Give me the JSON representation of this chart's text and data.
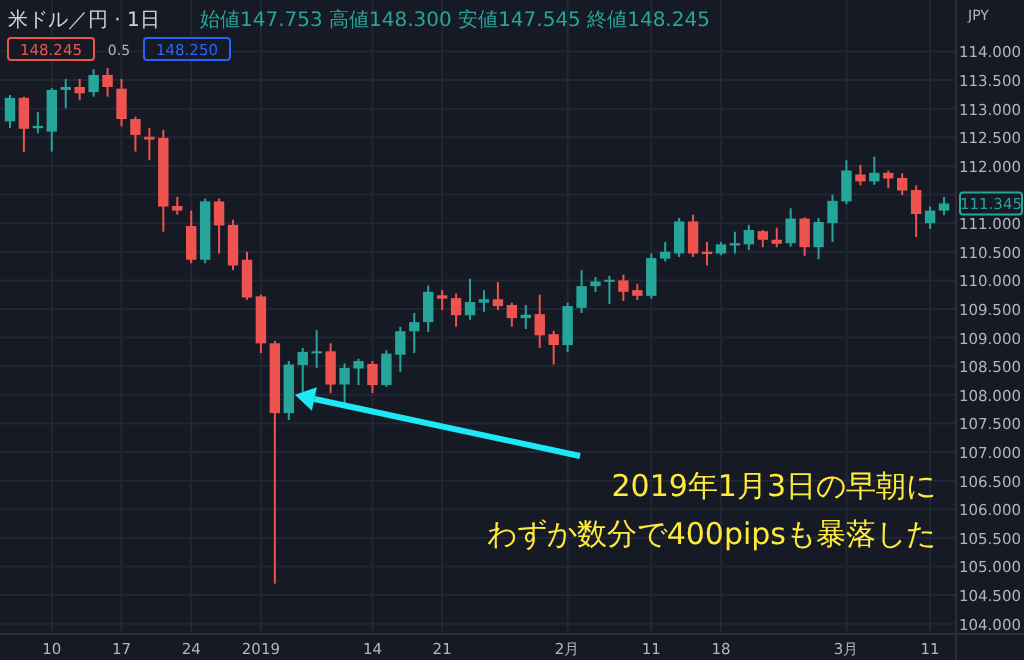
{
  "chart_data": {
    "type": "candlestick",
    "title": "米ドル／円 · 1日",
    "subtitle": "始値147.753 高値148.300 安値147.545 終値148.245",
    "ylabel": "JPY",
    "categories": [
      null,
      null,
      null,
      "10",
      null,
      null,
      null,
      null,
      "17",
      null,
      null,
      null,
      null,
      "24",
      null,
      null,
      null,
      null,
      "2019",
      null,
      null,
      null,
      null,
      null,
      null,
      null,
      "14",
      null,
      null,
      null,
      null,
      "21",
      null,
      null,
      null,
      null,
      null,
      null,
      null,
      null,
      "2月",
      null,
      null,
      null,
      null,
      null,
      "11",
      null,
      null,
      null,
      null,
      "18",
      null,
      null,
      null,
      null,
      null,
      null,
      null,
      null,
      "3月",
      null,
      null,
      null,
      null,
      null,
      "11",
      null
    ],
    "ohlc": [
      [
        112.78,
        113.24,
        112.66,
        113.19
      ],
      [
        113.19,
        113.21,
        112.24,
        112.65
      ],
      [
        112.66,
        112.94,
        112.57,
        112.7
      ],
      [
        112.6,
        113.36,
        112.25,
        113.33
      ],
      [
        113.33,
        113.52,
        113.01,
        113.38
      ],
      [
        113.38,
        113.52,
        113.15,
        113.27
      ],
      [
        113.29,
        113.69,
        113.21,
        113.59
      ],
      [
        113.59,
        113.71,
        113.21,
        113.38
      ],
      [
        113.35,
        113.52,
        112.69,
        112.82
      ],
      [
        112.82,
        112.86,
        112.25,
        112.54
      ],
      [
        112.51,
        112.66,
        112.1,
        112.46
      ],
      [
        112.49,
        112.63,
        110.85,
        111.29
      ],
      [
        111.3,
        111.46,
        111.15,
        111.22
      ],
      [
        110.95,
        111.22,
        110.3,
        110.36
      ],
      [
        110.36,
        111.43,
        110.3,
        111.38
      ],
      [
        111.38,
        111.43,
        110.47,
        110.96
      ],
      [
        110.97,
        111.06,
        110.18,
        110.26
      ],
      [
        110.36,
        110.5,
        109.66,
        109.7
      ],
      [
        109.72,
        109.75,
        108.73,
        108.9
      ],
      [
        108.9,
        108.94,
        104.7,
        107.68
      ],
      [
        107.68,
        108.59,
        107.56,
        108.53
      ],
      [
        108.52,
        108.82,
        108.05,
        108.75
      ],
      [
        108.73,
        109.13,
        108.47,
        108.76
      ],
      [
        108.76,
        108.9,
        108.03,
        108.18
      ],
      [
        108.18,
        108.55,
        107.82,
        108.47
      ],
      [
        108.46,
        108.63,
        108.17,
        108.59
      ],
      [
        108.54,
        108.59,
        108.03,
        108.17
      ],
      [
        108.17,
        108.78,
        108.14,
        108.72
      ],
      [
        108.7,
        109.19,
        108.4,
        109.11
      ],
      [
        109.11,
        109.43,
        108.73,
        109.27
      ],
      [
        109.27,
        109.91,
        109.1,
        109.8
      ],
      [
        109.74,
        109.83,
        109.48,
        109.68
      ],
      [
        109.69,
        109.77,
        109.19,
        109.39
      ],
      [
        109.39,
        110.03,
        109.31,
        109.62
      ],
      [
        109.61,
        109.83,
        109.45,
        109.67
      ],
      [
        109.67,
        109.97,
        109.48,
        109.55
      ],
      [
        109.57,
        109.61,
        109.19,
        109.34
      ],
      [
        109.34,
        109.57,
        109.15,
        109.4
      ],
      [
        109.41,
        109.75,
        108.82,
        109.04
      ],
      [
        109.06,
        109.12,
        108.53,
        108.87
      ],
      [
        108.87,
        109.61,
        108.75,
        109.55
      ],
      [
        109.52,
        110.18,
        109.43,
        109.9
      ],
      [
        109.9,
        110.06,
        109.8,
        109.98
      ],
      [
        109.98,
        110.08,
        109.59,
        110.01
      ],
      [
        110.0,
        110.1,
        109.64,
        109.8
      ],
      [
        109.83,
        109.94,
        109.66,
        109.73
      ],
      [
        109.73,
        110.47,
        109.68,
        110.39
      ],
      [
        110.38,
        110.67,
        110.33,
        110.5
      ],
      [
        110.47,
        111.09,
        110.41,
        111.03
      ],
      [
        111.03,
        111.15,
        110.41,
        110.47
      ],
      [
        110.5,
        110.67,
        110.26,
        110.46
      ],
      [
        110.47,
        110.67,
        110.44,
        110.63
      ],
      [
        110.61,
        110.85,
        110.47,
        110.65
      ],
      [
        110.63,
        110.97,
        110.53,
        110.88
      ],
      [
        110.86,
        110.88,
        110.58,
        110.71
      ],
      [
        110.71,
        110.92,
        110.58,
        110.64
      ],
      [
        110.65,
        111.26,
        110.59,
        111.08
      ],
      [
        111.08,
        111.1,
        110.43,
        110.58
      ],
      [
        110.58,
        111.09,
        110.37,
        111.02
      ],
      [
        111.0,
        111.5,
        110.67,
        111.39
      ],
      [
        111.38,
        112.1,
        111.33,
        111.92
      ],
      [
        111.85,
        112.02,
        111.66,
        111.73
      ],
      [
        111.73,
        112.16,
        111.67,
        111.88
      ],
      [
        111.88,
        111.92,
        111.61,
        111.78
      ],
      [
        111.79,
        111.87,
        111.49,
        111.57
      ],
      [
        111.58,
        111.66,
        110.76,
        111.16
      ],
      [
        111.0,
        111.29,
        110.9,
        111.22
      ],
      [
        111.22,
        111.46,
        111.14,
        111.345
      ]
    ],
    "colors": [
      "#26a69a",
      "#ef5350",
      "#26a69a",
      "#26a69a",
      "#26a69a",
      "#ef5350",
      "#26a69a",
      "#ef5350",
      "#ef5350",
      "#ef5350",
      "#ef5350",
      "#ef5350",
      "#ef5350",
      "#ef5350",
      "#26a69a",
      "#ef5350",
      "#ef5350",
      "#ef5350",
      "#ef5350",
      "#ef5350",
      "#26a69a",
      "#26a69a",
      "#26a69a",
      "#ef5350",
      "#26a69a",
      "#26a69a",
      "#ef5350",
      "#26a69a",
      "#26a69a",
      "#26a69a",
      "#26a69a",
      "#ef5350",
      "#ef5350",
      "#26a69a",
      "#26a69a",
      "#ef5350",
      "#ef5350",
      "#26a69a",
      "#ef5350",
      "#ef5350",
      "#26a69a",
      "#26a69a",
      "#26a69a",
      "#26a69a",
      "#ef5350",
      "#ef5350",
      "#26a69a",
      "#26a69a",
      "#26a69a",
      "#ef5350",
      "#ef5350",
      "#26a69a",
      "#26a69a",
      "#26a69a",
      "#ef5350",
      "#ef5350",
      "#26a69a",
      "#ef5350",
      "#26a69a",
      "#26a69a",
      "#26a69a",
      "#ef5350",
      "#26a69a",
      "#ef5350",
      "#ef5350",
      "#ef5350",
      "#26a69a",
      "#26a69a"
    ],
    "ylim": [
      103.82,
      114.9
    ],
    "yticks": [
      {
        "value": 104,
        "label": "104.000"
      },
      {
        "value": 104.5,
        "label": "104.500"
      },
      {
        "value": 105,
        "label": "105.000"
      },
      {
        "value": 105.5,
        "label": "105.500"
      },
      {
        "value": 106,
        "label": "106.000"
      },
      {
        "value": 106.5,
        "label": "106.500"
      },
      {
        "value": 107,
        "label": "107.000"
      },
      {
        "value": 107.5,
        "label": "107.500"
      },
      {
        "value": 108,
        "label": "108.000"
      },
      {
        "value": 108.5,
        "label": "108.500"
      },
      {
        "value": 109,
        "label": "109.000"
      },
      {
        "value": 109.5,
        "label": "109.500"
      },
      {
        "value": 110,
        "label": "110.000"
      },
      {
        "value": 110.5,
        "label": "110.500"
      },
      {
        "value": 111,
        "label": "111.000"
      },
      {
        "value": 111.5,
        "label": null
      },
      {
        "value": 112,
        "label": "112.000"
      },
      {
        "value": 112.5,
        "label": "112.500"
      },
      {
        "value": 113,
        "label": "113.000"
      },
      {
        "value": 113.5,
        "label": "113.500"
      },
      {
        "value": 114,
        "label": "114.000"
      }
    ],
    "grid": true,
    "annotations": [
      "148.245",
      "0.5",
      "148.250",
      {
        "text": "111.345",
        "y": 111.345
      },
      "2019年1月3日の早朝にわずか数分で400pipsも暴落した"
    ]
  }
}
